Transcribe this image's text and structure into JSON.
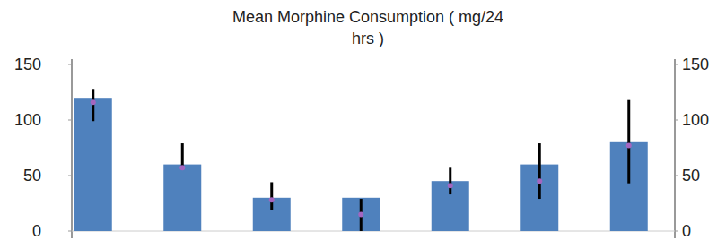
{
  "chart_data": {
    "type": "bar",
    "title": [
      "Mean Morphine Consumption ( mg/24",
      "hrs )"
    ],
    "categories": [
      null,
      null,
      null,
      null,
      null,
      null,
      null
    ],
    "values": [
      120,
      60,
      30,
      30,
      45,
      60,
      80
    ],
    "error_low": [
      99,
      58,
      19,
      0,
      33,
      29,
      43
    ],
    "error_high": [
      128,
      79,
      44,
      29,
      57,
      79,
      118
    ],
    "points": [
      116,
      57,
      28,
      15,
      41,
      45,
      77
    ],
    "color": "#4f81bd",
    "points_color": "#a366c0",
    "ylim": [
      0,
      150
    ],
    "yticks": [
      0,
      50,
      100,
      150
    ],
    "y2lim": [
      0,
      150
    ],
    "y2ticks": [
      0,
      50,
      100,
      150
    ],
    "grid": false
  }
}
